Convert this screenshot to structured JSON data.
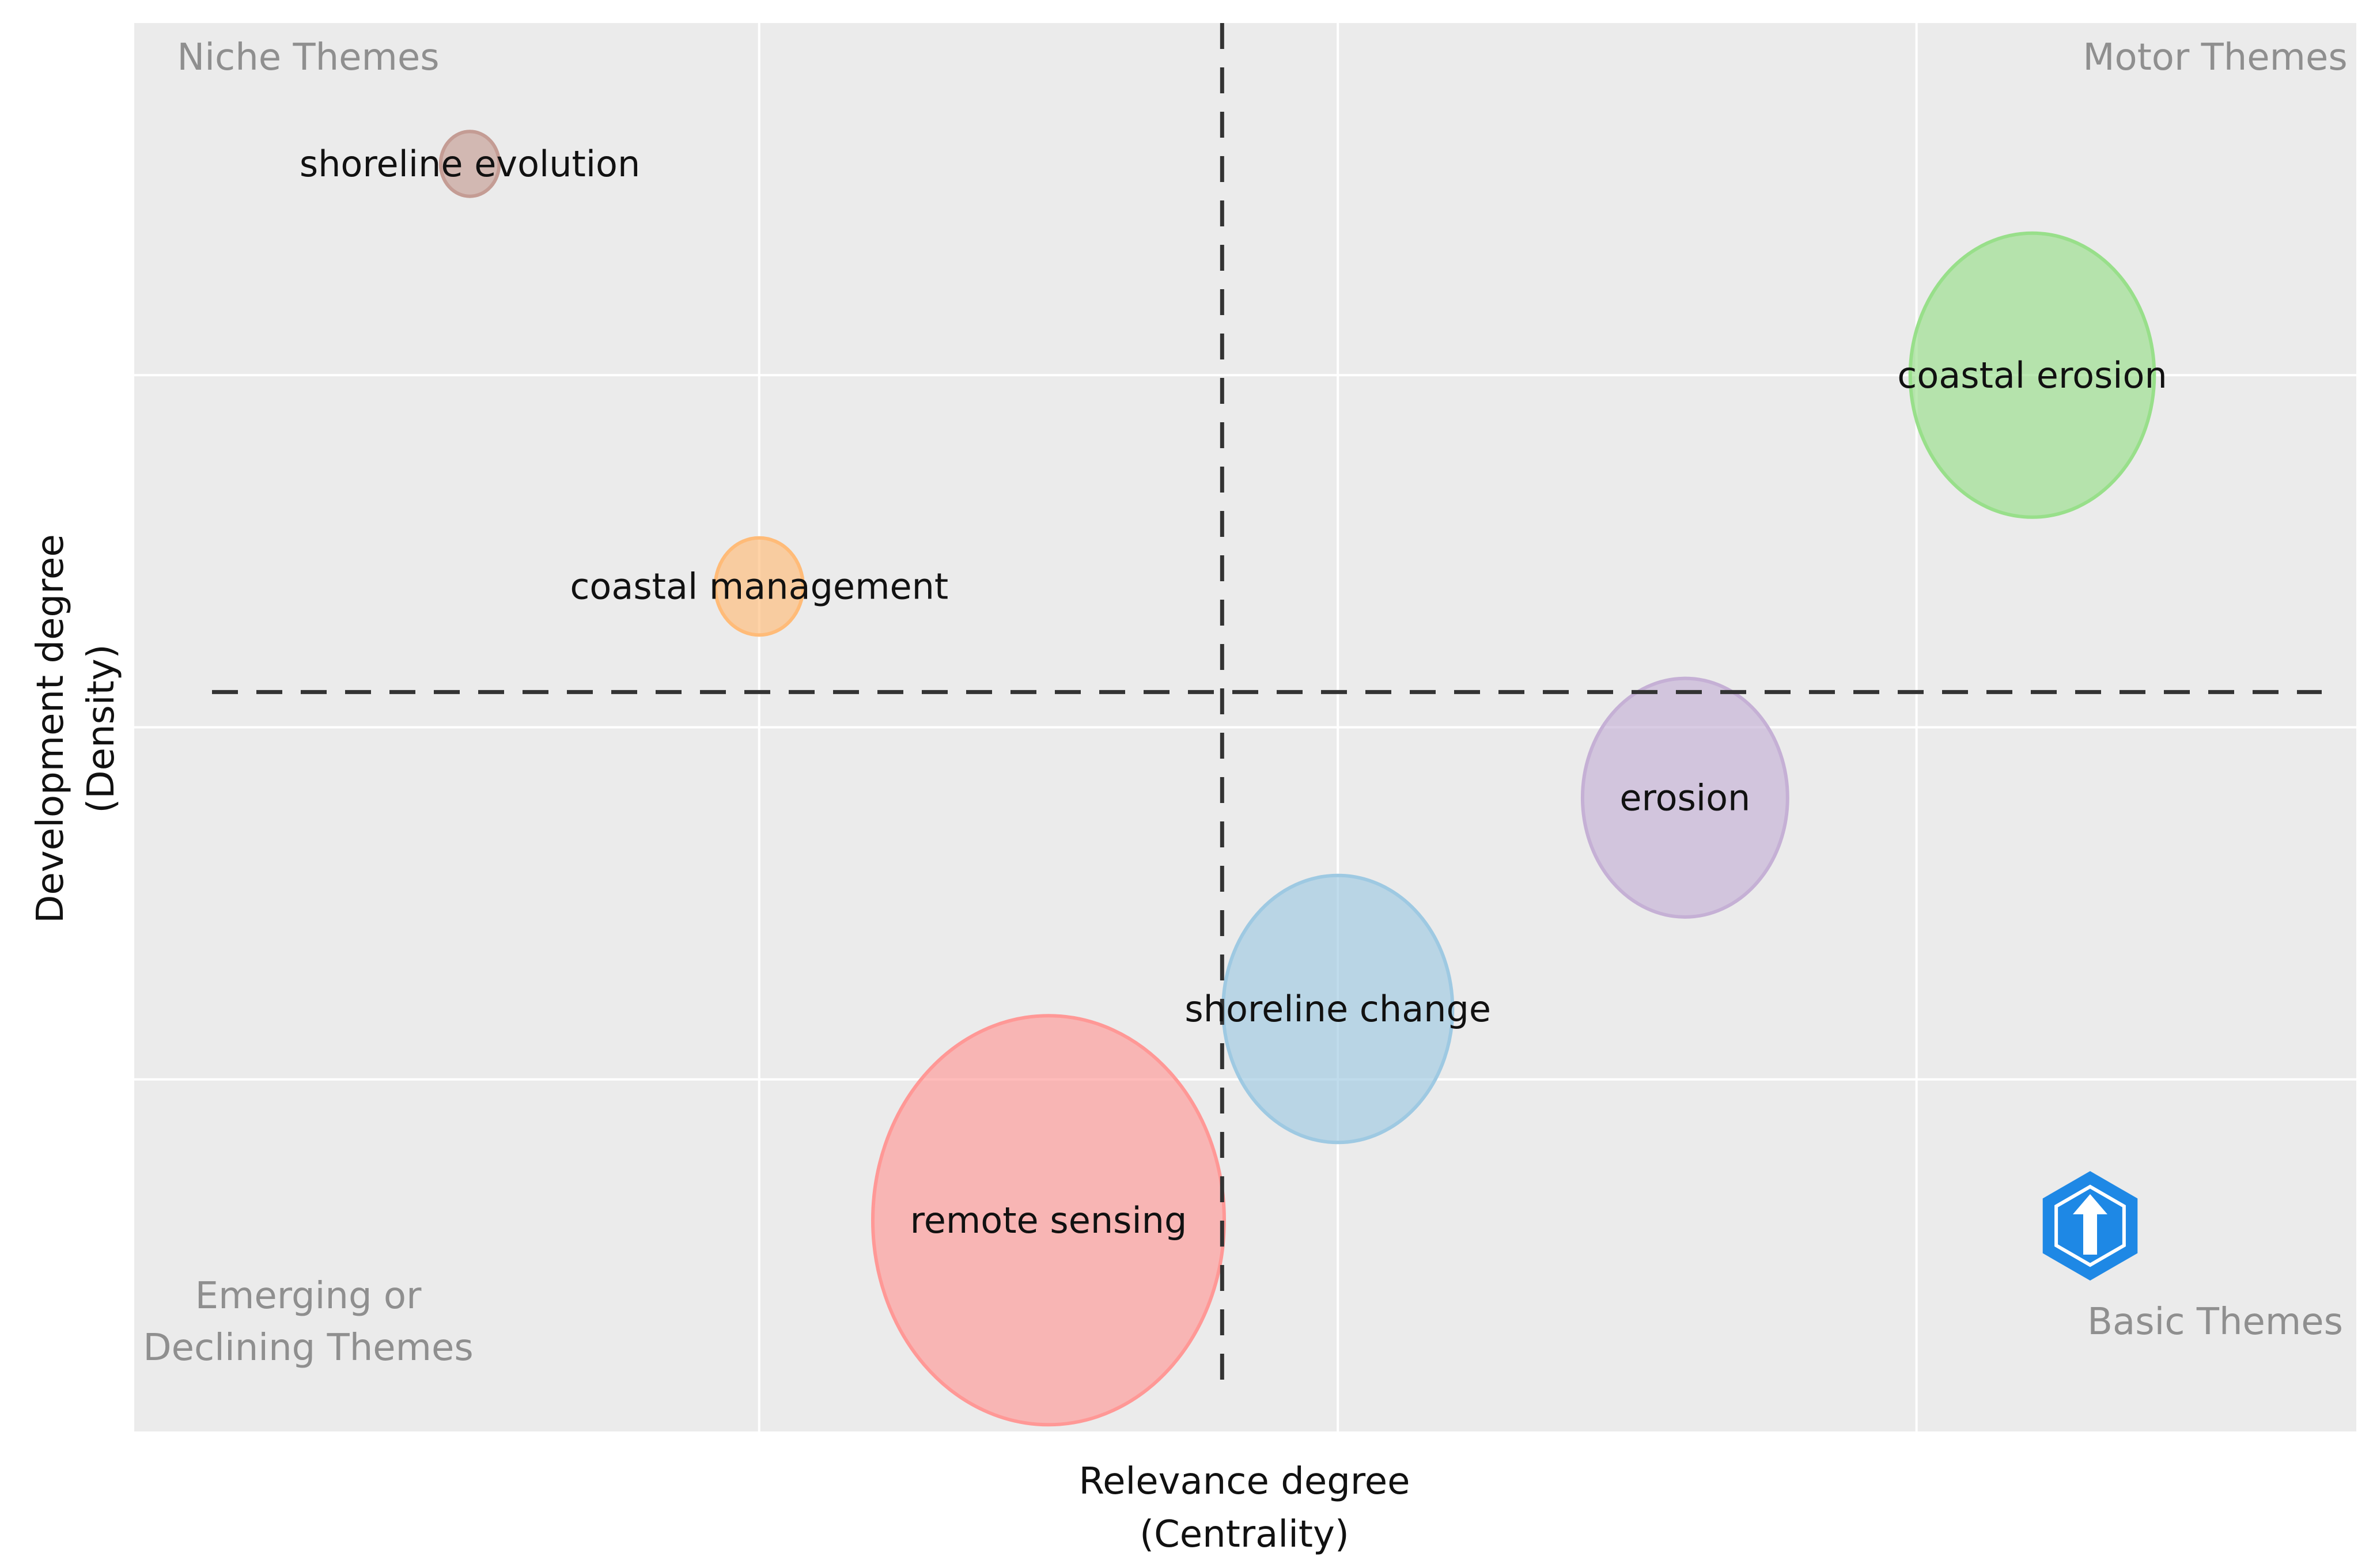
{
  "chart_data": {
    "type": "scatter",
    "subtype": "bubble",
    "title": "",
    "xlabel": [
      "Relevance degree",
      "(Centrality)"
    ],
    "ylabel": [
      "Development degree",
      "(Density)"
    ],
    "xlim": [
      -0.02,
      0.94
    ],
    "ylim": [
      0,
      1
    ],
    "show_tick_labels": false,
    "grid": true,
    "background": "#EBEBEB",
    "reference_lines": {
      "x": 0.45,
      "y": 0.525,
      "style": "dashed",
      "color": "#333333"
    },
    "quadrant_labels": [
      {
        "name": "niche",
        "lines": [
          "Niche Themes"
        ],
        "position": "top-left"
      },
      {
        "name": "motor",
        "lines": [
          "Motor Themes"
        ],
        "position": "top-right"
      },
      {
        "name": "emerging",
        "lines": [
          "Emerging or",
          "Declining Themes"
        ],
        "position": "bottom-left"
      },
      {
        "name": "basic",
        "lines": [
          "Basic Themes"
        ],
        "position": "bottom-right"
      }
    ],
    "points": [
      {
        "label": "shoreline evolution",
        "x": 0.125,
        "y": 0.9,
        "size": 0.12,
        "color": "#C49C94"
      },
      {
        "label": "coastal management",
        "x": 0.25,
        "y": 0.6,
        "size": 0.18,
        "color": "#FFBB78"
      },
      {
        "label": "coastal erosion",
        "x": 0.8,
        "y": 0.75,
        "size": 0.5,
        "color": "#98DF8A"
      },
      {
        "label": "erosion",
        "x": 0.65,
        "y": 0.45,
        "size": 0.42,
        "color": "#C5B0D5"
      },
      {
        "label": "shoreline change",
        "x": 0.5,
        "y": 0.3,
        "size": 0.47,
        "color": "#9EC9E2"
      },
      {
        "label": "remote sensing",
        "x": 0.375,
        "y": 0.15,
        "size": 0.72,
        "color": "#FF9896"
      }
    ],
    "logo": {
      "name": "bibliometrix-logo-icon",
      "color": "#1E88E5"
    }
  }
}
